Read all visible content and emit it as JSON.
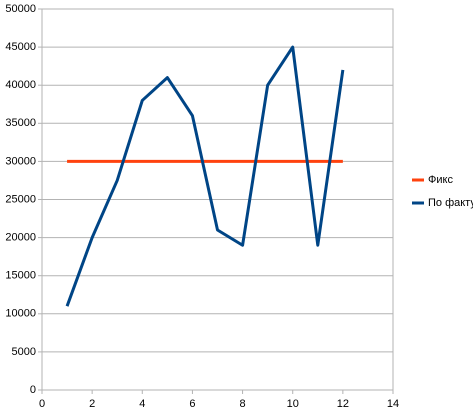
{
  "chart_data": {
    "type": "line",
    "x": [
      1,
      2,
      3,
      4,
      5,
      6,
      7,
      8,
      9,
      10,
      11,
      12
    ],
    "series": [
      {
        "name": "Фикс",
        "color": "#ff420e",
        "values": [
          30000,
          30000,
          30000,
          30000,
          30000,
          30000,
          30000,
          30000,
          30000,
          30000,
          30000,
          30000
        ]
      },
      {
        "name": "По факту",
        "color": "#004586",
        "values": [
          11000,
          20000,
          27500,
          38000,
          41000,
          36000,
          21000,
          19000,
          40000,
          45000,
          19000,
          42000
        ]
      }
    ],
    "xlim": [
      0,
      14
    ],
    "xticks": [
      0,
      2,
      4,
      6,
      8,
      10,
      12,
      14
    ],
    "ylim": [
      0,
      50000
    ],
    "yticks": [
      0,
      5000,
      10000,
      15000,
      20000,
      25000,
      30000,
      35000,
      40000,
      45000,
      50000
    ],
    "grid": true,
    "legend": "right"
  }
}
